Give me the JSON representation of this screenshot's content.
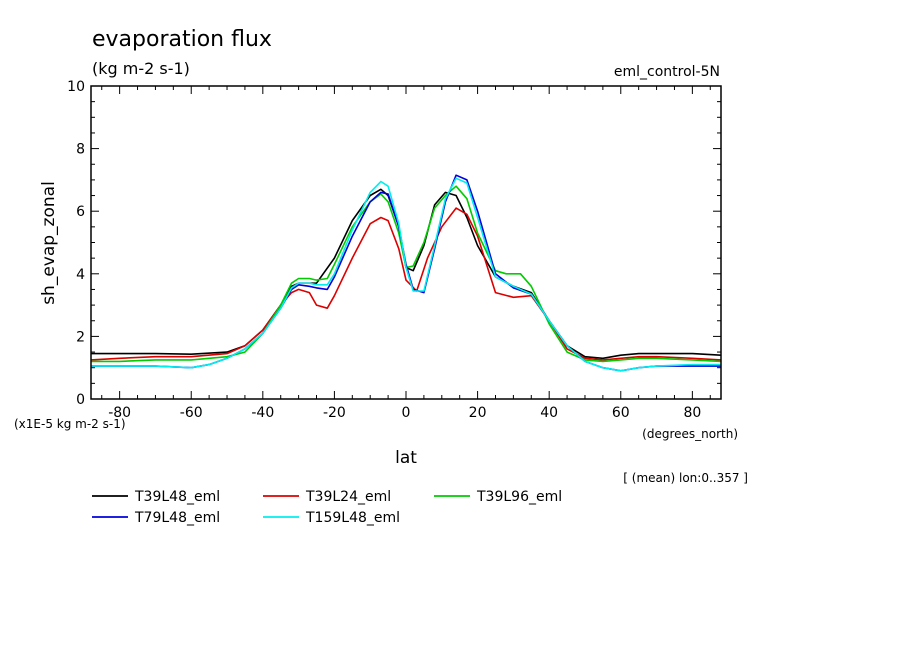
{
  "chart_data": {
    "type": "line",
    "title": "evaporation flux",
    "subtitle": "(kg m-2 s-1)",
    "experiment_label": "eml_control-5N",
    "xlabel": "lat",
    "x_units": "(degrees_north)",
    "ylabel": "sh_evap_zonal",
    "y_units": "(x1E-5 kg m-2 s-1)",
    "averaging_note": "[ (mean) lon:0..357 ]",
    "xlim": [
      -88,
      88
    ],
    "ylim": [
      0,
      10
    ],
    "x_ticks": [
      -80,
      -60,
      -40,
      -20,
      0,
      20,
      40,
      60,
      80
    ],
    "y_ticks": [
      0,
      2,
      4,
      6,
      8,
      10
    ],
    "series": [
      {
        "name": "T39L48_eml",
        "color": "#000000",
        "x": [
          -88,
          -80,
          -70,
          -60,
          -50,
          -45,
          -40,
          -35,
          -32,
          -30,
          -28,
          -25,
          -20,
          -15,
          -10,
          -7,
          -5,
          -2,
          0,
          2,
          5,
          8,
          11,
          14,
          17,
          20,
          25,
          30,
          35,
          40,
          45,
          50,
          55,
          60,
          65,
          70,
          80,
          88
        ],
        "y": [
          1.45,
          1.45,
          1.45,
          1.43,
          1.5,
          1.7,
          2.2,
          3.0,
          3.6,
          3.7,
          3.7,
          3.7,
          4.5,
          5.7,
          6.5,
          6.7,
          6.5,
          5.5,
          4.2,
          4.1,
          4.9,
          6.2,
          6.6,
          6.5,
          5.8,
          4.9,
          3.9,
          3.6,
          3.4,
          2.5,
          1.7,
          1.35,
          1.3,
          1.4,
          1.45,
          1.45,
          1.45,
          1.4
        ]
      },
      {
        "name": "T39L24_eml",
        "color": "#dd0000",
        "x": [
          -88,
          -80,
          -70,
          -60,
          -50,
          -45,
          -40,
          -35,
          -32,
          -30,
          -27,
          -25,
          -22,
          -20,
          -15,
          -10,
          -7,
          -5,
          -2,
          0,
          3,
          6,
          10,
          14,
          17,
          20,
          25,
          30,
          35,
          40,
          45,
          50,
          55,
          60,
          65,
          70,
          80,
          88
        ],
        "y": [
          1.25,
          1.3,
          1.35,
          1.35,
          1.45,
          1.7,
          2.2,
          3.0,
          3.4,
          3.5,
          3.4,
          3.0,
          2.9,
          3.3,
          4.5,
          5.6,
          5.8,
          5.7,
          4.8,
          3.8,
          3.45,
          4.5,
          5.5,
          6.1,
          5.9,
          5.2,
          3.4,
          3.25,
          3.3,
          2.5,
          1.6,
          1.3,
          1.25,
          1.3,
          1.35,
          1.35,
          1.3,
          1.25
        ]
      },
      {
        "name": "T39L96_eml",
        "color": "#00cc00",
        "x": [
          -88,
          -80,
          -70,
          -60,
          -50,
          -45,
          -40,
          -35,
          -32,
          -30,
          -27,
          -25,
          -22,
          -20,
          -15,
          -10,
          -7,
          -5,
          -2,
          0,
          2,
          5,
          8,
          11,
          14,
          17,
          20,
          25,
          28,
          32,
          35,
          40,
          45,
          50,
          55,
          60,
          65,
          70,
          80,
          88
        ],
        "y": [
          1.2,
          1.2,
          1.25,
          1.25,
          1.35,
          1.5,
          2.1,
          3.0,
          3.7,
          3.85,
          3.85,
          3.8,
          3.85,
          4.3,
          5.5,
          6.3,
          6.55,
          6.3,
          5.3,
          4.2,
          4.25,
          5.0,
          6.1,
          6.5,
          6.8,
          6.4,
          5.3,
          4.1,
          4.0,
          4.0,
          3.6,
          2.4,
          1.5,
          1.25,
          1.2,
          1.25,
          1.3,
          1.3,
          1.25,
          1.2
        ]
      },
      {
        "name": "T79L48_eml",
        "color": "#0000dd",
        "x": [
          -88,
          -80,
          -70,
          -60,
          -55,
          -50,
          -45,
          -40,
          -35,
          -32,
          -30,
          -27,
          -25,
          -22,
          -20,
          -15,
          -10,
          -7,
          -5,
          -2,
          0,
          2,
          5,
          8,
          11,
          14,
          17,
          20,
          25,
          30,
          35,
          40,
          45,
          50,
          55,
          60,
          65,
          70,
          80,
          88
        ],
        "y": [
          1.05,
          1.05,
          1.05,
          1.0,
          1.1,
          1.3,
          1.6,
          2.1,
          2.9,
          3.5,
          3.65,
          3.6,
          3.55,
          3.5,
          3.9,
          5.2,
          6.3,
          6.6,
          6.55,
          5.5,
          4.3,
          3.5,
          3.4,
          4.8,
          6.3,
          7.15,
          7.0,
          6.0,
          4.0,
          3.55,
          3.35,
          2.5,
          1.7,
          1.2,
          1.0,
          0.9,
          1.0,
          1.05,
          1.05,
          1.05
        ]
      },
      {
        "name": "T159L48_eml",
        "color": "#00eeee",
        "x": [
          -88,
          -80,
          -70,
          -60,
          -55,
          -50,
          -45,
          -40,
          -35,
          -32,
          -30,
          -27,
          -25,
          -22,
          -20,
          -15,
          -10,
          -7,
          -5,
          -2,
          0,
          2,
          5,
          8,
          11,
          14,
          17,
          20,
          25,
          30,
          35,
          40,
          45,
          50,
          55,
          60,
          65,
          70,
          80,
          88
        ],
        "y": [
          1.05,
          1.05,
          1.05,
          1.0,
          1.1,
          1.3,
          1.6,
          2.1,
          2.9,
          3.55,
          3.7,
          3.7,
          3.65,
          3.65,
          4.0,
          5.4,
          6.6,
          6.95,
          6.8,
          5.6,
          4.2,
          3.45,
          3.45,
          4.9,
          6.4,
          7.05,
          6.9,
          5.8,
          3.9,
          3.6,
          3.35,
          2.5,
          1.7,
          1.2,
          1.0,
          0.9,
          1.0,
          1.05,
          1.1,
          1.1
        ]
      }
    ]
  }
}
